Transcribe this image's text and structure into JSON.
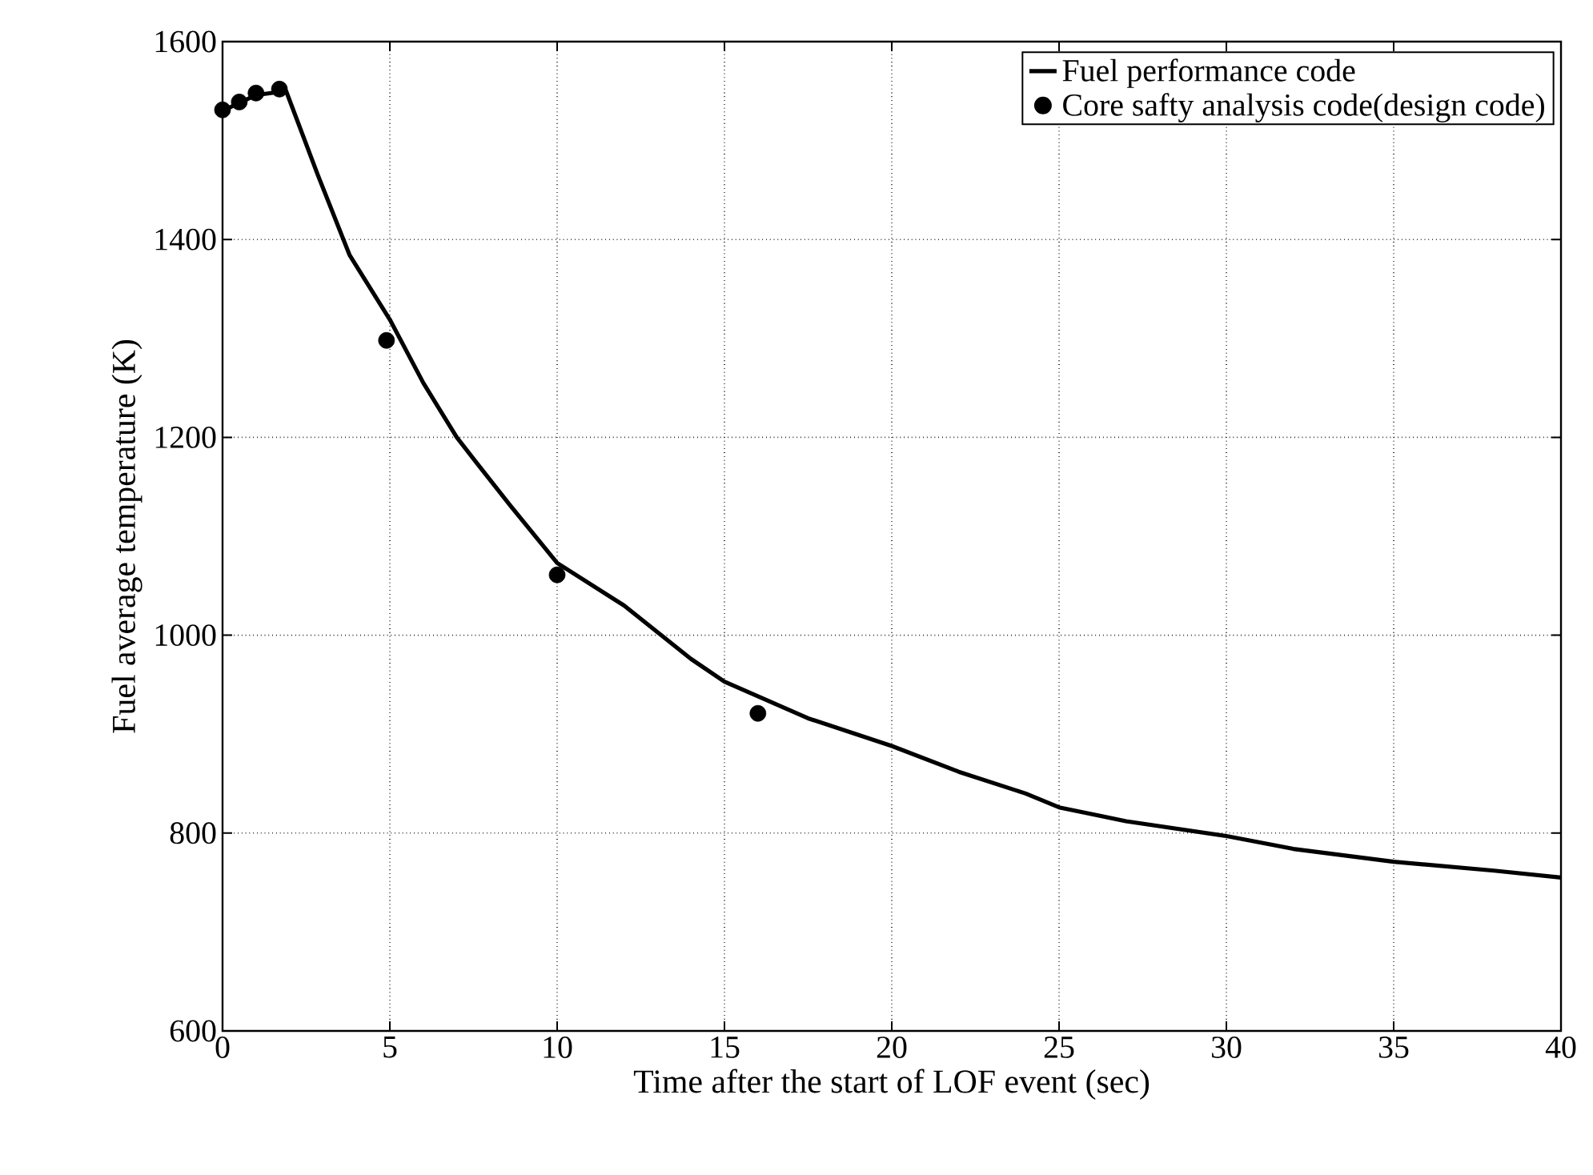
{
  "chart_data": {
    "type": "line",
    "xlabel": "Time after the start of LOF event (sec)",
    "ylabel": "Fuel average temperature (K)",
    "xlim": [
      0,
      40
    ],
    "ylim": [
      600,
      1600
    ],
    "xticks": [
      0,
      5,
      10,
      15,
      20,
      25,
      30,
      35,
      40
    ],
    "yticks": [
      600,
      800,
      1000,
      1200,
      1400,
      1600
    ],
    "grid": true,
    "legend": "top right",
    "line_style": "solid",
    "series": [
      {
        "name": "Fuel performance code",
        "marker": "none",
        "color": "#000000",
        "x": [
          0,
          0.5,
          1.0,
          1.9,
          2.85,
          3.8,
          5,
          6,
          7,
          7.6,
          8.6,
          10,
          12,
          14,
          15,
          17.5,
          20,
          22,
          24,
          25,
          27,
          30,
          32,
          35,
          38,
          40
        ],
        "values": [
          1530,
          1538,
          1546,
          1550,
          1465,
          1384,
          1319,
          1255,
          1200,
          1174,
          1131,
          1073,
          1030,
          976,
          953,
          916,
          888,
          862,
          840,
          826,
          812,
          797,
          784,
          771,
          762,
          755
        ]
      },
      {
        "name": "Core safty analysis code(design code)",
        "type": "scatter",
        "marker": "circle",
        "color": "#000000",
        "x": [
          0,
          0.5,
          1.0,
          1.7,
          4.9,
          10,
          16
        ],
        "values": [
          1531,
          1539,
          1548,
          1552,
          1298,
          1061,
          921
        ]
      }
    ]
  }
}
